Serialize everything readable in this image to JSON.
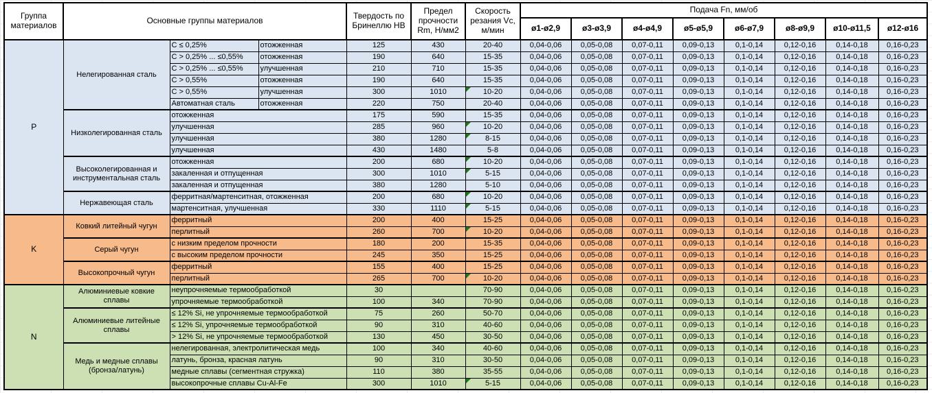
{
  "header": {
    "group": "Группа материалов",
    "main": "Основные группы материалов",
    "hb": "Твердость по Бринеллю HB",
    "rm": "Предел прочности Rm, Н/мм2",
    "vc": "Скорость резания Vc, м/мин",
    "feed": "Подача Fn, мм/об",
    "feed_cols": [
      "ø1-ø2,9",
      "ø3-ø3,9",
      "ø4-ø4,9",
      "ø5-ø5,9",
      "ø6-ø7,9",
      "ø8-ø9,9",
      "ø10-ø11,5",
      "ø12-ø16"
    ]
  },
  "feed_values": [
    "0,04-0,06",
    "0,05-0,08",
    "0,07-0,11",
    "0,09-0,13",
    "0,1-0,14",
    "0,12-0,16",
    "0,14-0,18",
    "0,16-0,23"
  ],
  "colors": {
    "P": "#dbe5f1",
    "K": "#f6ba8b",
    "N": "#cde0b4",
    "marker": "#1e7a1e"
  },
  "groups": [
    {
      "code": "P",
      "subgroups": [
        {
          "name": "Нелегированная сталь",
          "rows": [
            {
              "d1": "C ≤ 0,25%",
              "d2": "отожженная",
              "hb": "125",
              "rm": "430",
              "vc": "20-40"
            },
            {
              "d1": "C > 0,25% ... ≤0,55%",
              "d2": "отожженная",
              "hb": "190",
              "rm": "640",
              "vc": "15-35"
            },
            {
              "d1": "C > 0,25% ... ≤0,55%",
              "d2": "улучшенная",
              "hb": "210",
              "rm": "710",
              "vc": "15-35"
            },
            {
              "d1": "C > 0,55%",
              "d2": "отожженная",
              "hb": "190",
              "rm": "640",
              "vc": "15-35"
            },
            {
              "d1": "C > 0,55%",
              "d2": "улучшенная",
              "hb": "300",
              "rm": "1010",
              "vc": "10-20",
              "marker": true
            },
            {
              "d1": "Автоматная сталь",
              "d2": "отожженная",
              "hb": "220",
              "rm": "750",
              "vc": "20-40"
            }
          ]
        },
        {
          "name": "Низколегированная сталь",
          "rows": [
            {
              "d1": "отожженная",
              "hb": "175",
              "rm": "590",
              "vc": "15-35"
            },
            {
              "d1": "улучшенная",
              "hb": "285",
              "rm": "960",
              "vc": "10-20",
              "marker": true
            },
            {
              "d1": "улучшенная",
              "hb": "380",
              "rm": "1280",
              "vc": "8-15",
              "marker": true
            },
            {
              "d1": "улучшенная",
              "hb": "430",
              "rm": "1480",
              "vc": "5-8"
            }
          ]
        },
        {
          "name": "Высоколегированная и инструментальная сталь",
          "rows": [
            {
              "d1": "отожженная",
              "hb": "200",
              "rm": "680",
              "vc": "10-20",
              "marker": true
            },
            {
              "d1": "закаленная и отпущенная",
              "hb": "300",
              "rm": "1010",
              "vc": "5-15",
              "marker": true
            },
            {
              "d1": "закаленная и отпущенная",
              "hb": "380",
              "rm": "1280",
              "vc": "5-10"
            }
          ]
        },
        {
          "name": "Нержавеющая сталь",
          "rows": [
            {
              "d1": "ферритная/мартенситная, отожженная",
              "hb": "200",
              "rm": "680",
              "vc": "10-20",
              "marker": true
            },
            {
              "d1": "мартенситная, улучшенная",
              "hb": "330",
              "rm": "1110",
              "vc": "5-15",
              "marker": true
            }
          ]
        }
      ]
    },
    {
      "code": "K",
      "subgroups": [
        {
          "name": "Ковкий литейный чугун",
          "rows": [
            {
              "d1": "ферритный",
              "hb": "200",
              "rm": "400",
              "vc": "15-25"
            },
            {
              "d1": "перлитный",
              "hb": "260",
              "rm": "700",
              "vc": "10-20",
              "marker": true
            }
          ]
        },
        {
          "name": "Серый чугун",
          "rows": [
            {
              "d1": "с низким пределом прочности",
              "hb": "180",
              "rm": "200",
              "vc": "15-35"
            },
            {
              "d1": "с высоким пределом прочности",
              "hb": "245",
              "rm": "350",
              "vc": "15-25"
            }
          ]
        },
        {
          "name": "Высокопрочный чугун",
          "rows": [
            {
              "d1": "ферритный",
              "hb": "155",
              "rm": "400",
              "vc": "15-25"
            },
            {
              "d1": "перлитный",
              "hb": "265",
              "rm": "700",
              "vc": "10-20",
              "marker": true
            }
          ]
        }
      ]
    },
    {
      "code": "N",
      "subgroups": [
        {
          "name": "Алюминиевые ковкие сплавы",
          "rows": [
            {
              "d1": "неупрочняемые термообработкой",
              "hb": "30",
              "rm": "",
              "vc": "70-90"
            },
            {
              "d1": "упрочняемые термообработкой",
              "hb": "100",
              "rm": "340",
              "vc": "70-90"
            }
          ]
        },
        {
          "name": "Алюминиевые литейные сплавы",
          "rows": [
            {
              "d1": "≤ 12% Si, не упрочняемые термообработкой",
              "hb": "75",
              "rm": "260",
              "vc": "50-70"
            },
            {
              "d1": "≤ 12% Si, упрочняемые термообработкой",
              "hb": "90",
              "rm": "310",
              "vc": "40-60"
            },
            {
              "d1": "> 12% Si, не упрочняемые термообработкой",
              "hb": "130",
              "rm": "450",
              "vc": "30-50"
            }
          ]
        },
        {
          "name": "Медь и медные сплавы (бронза/латунь)",
          "rows": [
            {
              "d1": "нелегированная, электролитическая медь",
              "hb": "100",
              "rm": "340",
              "vc": "40-60"
            },
            {
              "d1": "латунь, бронза, красная латунь",
              "hb": "90",
              "rm": "310",
              "vc": "30-50"
            },
            {
              "d1": "медные сплавы (сегментная стружка)",
              "hb": "110",
              "rm": "380",
              "vc": "35-55"
            },
            {
              "d1": "высокопрочные сплавы Cu-Al-Fe",
              "hb": "300",
              "rm": "1010",
              "vc": "5-15",
              "marker": true
            }
          ]
        }
      ]
    }
  ]
}
